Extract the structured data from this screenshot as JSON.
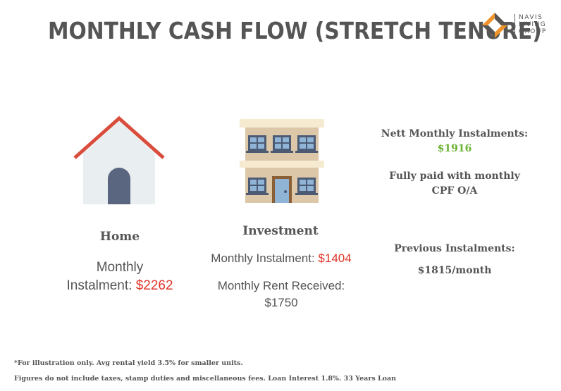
{
  "title": "MONTHLY CASH FLOW (STRETCH TENURE)",
  "logo": {
    "line1": "NAVIS",
    "line2": "LIVING",
    "line3": "GROUP"
  },
  "home": {
    "heading": "Home",
    "label_line1": "Monthly",
    "label_line2": "Instalment: ",
    "amount": "$2262"
  },
  "investment": {
    "heading": "Investment",
    "instalment_label": "Monthly Instalment: ",
    "instalment_amount": "$1404",
    "rent_label": "Monthly Rent Received:",
    "rent_amount": "$1750"
  },
  "summary": {
    "nett_label": "Nett Monthly Instalments:",
    "nett_amount": "$1916",
    "cpf_line1": "Fully paid with monthly",
    "cpf_line2": "CPF O/A",
    "previous_label": "Previous Instalments:",
    "previous_amount": "$1815/month"
  },
  "footnotes": {
    "line1": "*For illustration only. Avg rental yield 3.5% for smaller units.",
    "line2": "Figures do not include taxes, stamp duties and miscellaneous fees. Loan Interest 1.8%. 33 Years Loan"
  },
  "colors": {
    "accent_red": "#e0352b",
    "accent_green": "#6bb130",
    "logo_orange": "#f0932b",
    "text": "#555555"
  }
}
